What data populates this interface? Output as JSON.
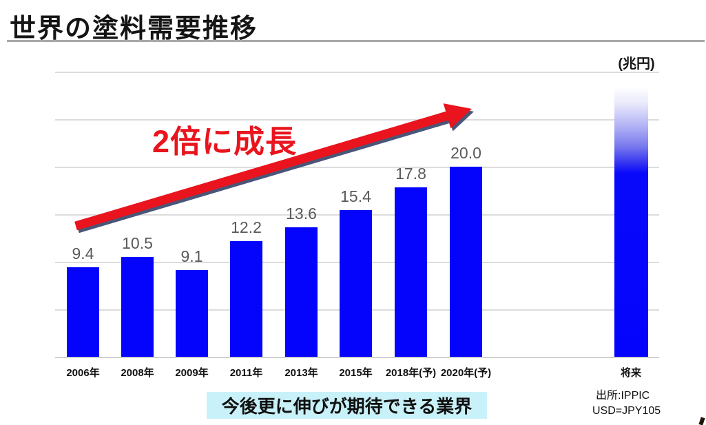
{
  "page": {
    "title": "世界の塗料需要推移",
    "unit_label": "(兆円)",
    "banner_text": "今後更に伸びが期待できる業界",
    "source_line1": "出所:IPPIC",
    "source_line2": "USD=JPY105"
  },
  "chart_data": {
    "type": "bar",
    "title": "世界の塗料需要推移",
    "ylabel": "兆円",
    "categories": [
      "2006年",
      "2008年",
      "2009年",
      "2011年",
      "2013年",
      "2015年",
      "2018年(予)",
      "2020年(予)"
    ],
    "values": [
      9.4,
      10.5,
      9.1,
      12.2,
      13.6,
      15.4,
      17.8,
      20.0
    ],
    "value_labels": [
      "9.4",
      "10.5",
      "9.1",
      "12.2",
      "13.6",
      "15.4",
      "17.8",
      "20.0"
    ],
    "ylim": [
      0,
      30
    ],
    "grid_step": 5,
    "grid": "on",
    "legend": "none",
    "bar_color": "#0404fc",
    "future_bar": {
      "label": "将来",
      "style": "white-to-blue-gradient",
      "approx_top_value": 28.4
    },
    "annotation": {
      "text": "2倍に成長",
      "color": "#e9141d",
      "shape": "thick-red-arrow-up-right"
    }
  }
}
